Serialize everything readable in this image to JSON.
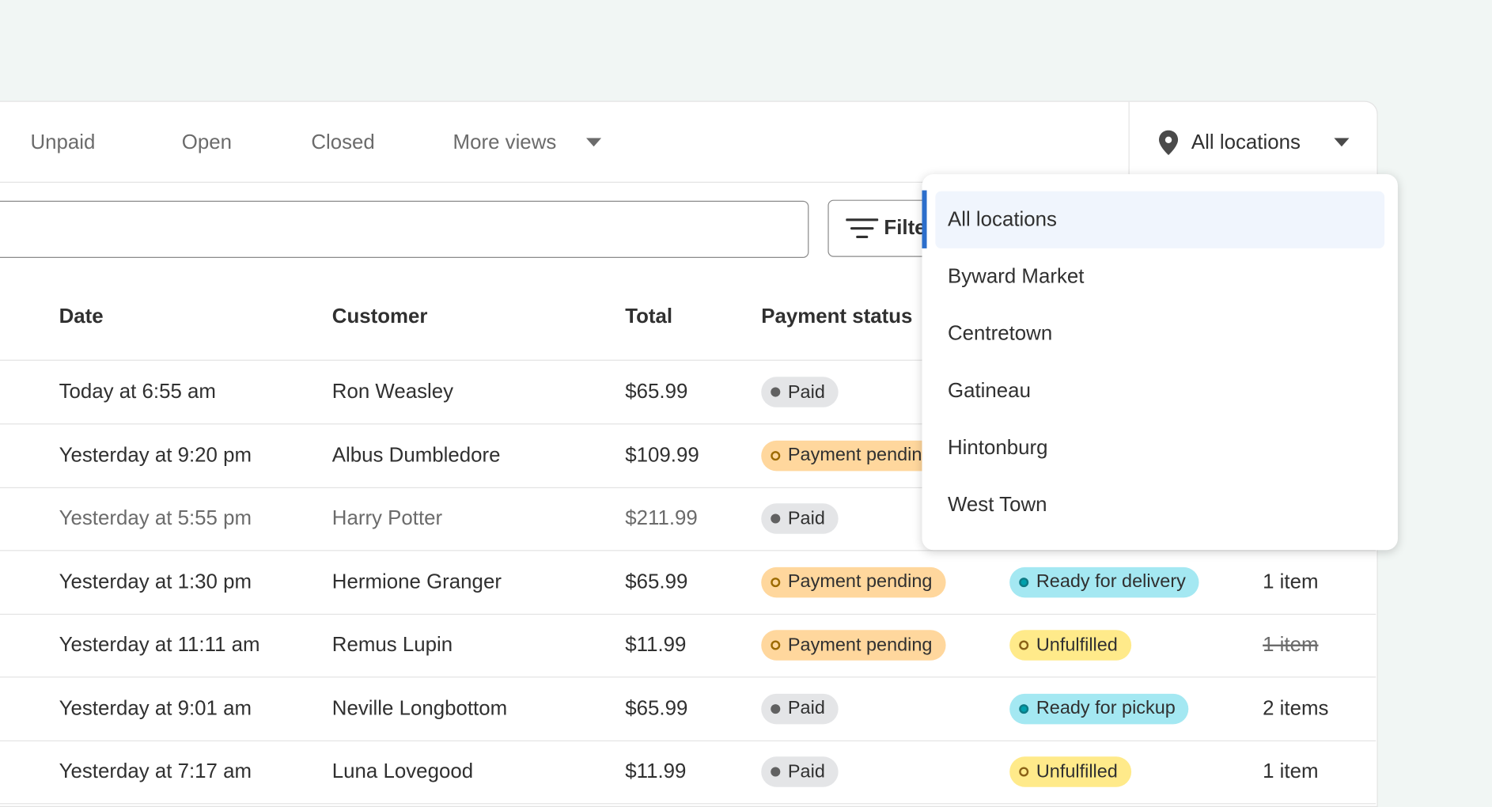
{
  "tabs": [
    "Unpaid",
    "Open",
    "Closed",
    "More views"
  ],
  "location_button": "All locations",
  "filter_label": "Filter",
  "table": {
    "headers": [
      "Date",
      "Customer",
      "Total",
      "Payment status"
    ],
    "rows": [
      {
        "date": "Today at 6:55 am",
        "customer": "Ron Weasley",
        "total": "$65.99",
        "payment": "Paid",
        "payment_tone": "neutral"
      },
      {
        "date": "Yesterday at 9:20 pm",
        "customer": "Albus Dumbledore",
        "total": "$109.99",
        "payment": "Payment pending",
        "payment_tone": "warning"
      },
      {
        "date": "Yesterday at 5:55 pm",
        "customer": "Harry Potter",
        "total": "$211.99",
        "payment": "Paid",
        "payment_tone": "neutral",
        "muted": true
      },
      {
        "date": "Yesterday at 1:30 pm",
        "customer": "Hermione Granger",
        "total": "$65.99",
        "payment": "Payment pending",
        "payment_tone": "warning",
        "fulfillment": "Ready for delivery",
        "fulfillment_tone": "info",
        "items": "1 item"
      },
      {
        "date": "Yesterday at 11:11 am",
        "customer": "Remus Lupin",
        "total": "$11.99",
        "payment": "Payment pending",
        "payment_tone": "warning",
        "fulfillment": "Unfulfilled",
        "fulfillment_tone": "attention",
        "items": "1 item",
        "items_struck": true
      },
      {
        "date": "Yesterday at 9:01 am",
        "customer": "Neville Longbottom",
        "total": "$65.99",
        "payment": "Paid",
        "payment_tone": "neutral",
        "fulfillment": "Ready for pickup",
        "fulfillment_tone": "info",
        "items": "2 items"
      },
      {
        "date": "Yesterday at 7:17 am",
        "customer": "Luna Lovegood",
        "total": "$11.99",
        "payment": "Paid",
        "payment_tone": "neutral",
        "fulfillment": "Unfulfilled",
        "fulfillment_tone": "attention",
        "items": "1 item"
      }
    ]
  },
  "dropdown": {
    "items": [
      "All locations",
      "Byward Market",
      "Centretown",
      "Gatineau",
      "Hintonburg",
      "West Town"
    ],
    "selected": 0
  }
}
